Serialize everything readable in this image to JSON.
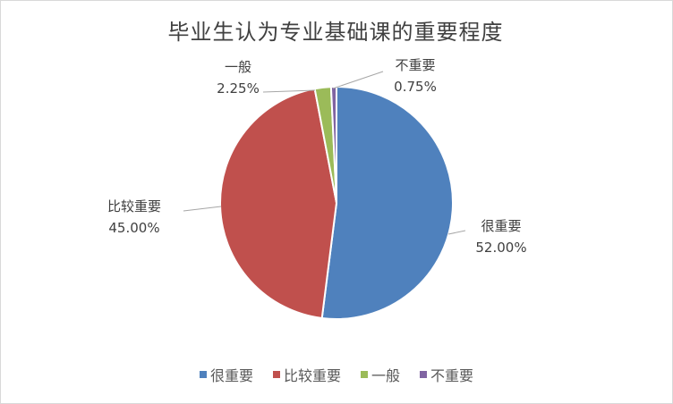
{
  "chart_data": {
    "type": "pie",
    "title": "毕业生认为专业基础课的重要程度",
    "categories": [
      "很重要",
      "比较重要",
      "一般",
      "不重要"
    ],
    "values": [
      52.0,
      45.0,
      2.25,
      0.75
    ],
    "value_labels": [
      "52.00%",
      "45.00%",
      "2.25%",
      "0.75%"
    ],
    "colors": [
      "#4F81BD",
      "#C0504D",
      "#9BBB59",
      "#8064A2"
    ],
    "legend_position": "bottom"
  }
}
